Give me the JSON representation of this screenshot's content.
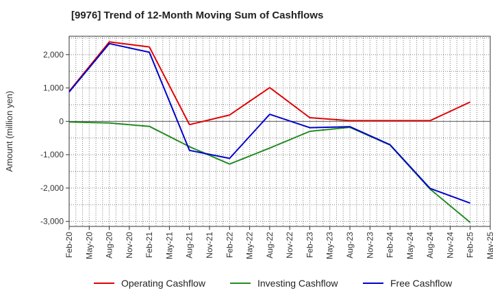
{
  "chart_data": {
    "type": "line",
    "title": "[9976]  Trend of 12-Month Moving Sum of Cashflows",
    "xlabel": "",
    "ylabel": "Amount (million yen)",
    "x": [
      "Feb-20",
      "May-20",
      "Aug-20",
      "Nov-20",
      "Feb-21",
      "May-21",
      "Aug-21",
      "Nov-21",
      "Feb-22",
      "May-22",
      "Aug-22",
      "Nov-22",
      "Feb-23",
      "May-23",
      "Aug-23",
      "Nov-23",
      "Feb-24",
      "May-24",
      "Aug-24",
      "Nov-24",
      "Feb-25",
      "May-25"
    ],
    "ylim": [
      -3150,
      2550
    ],
    "yticks": [
      2000,
      1000,
      0,
      -1000,
      -2000,
      -3000
    ],
    "ytick_labels": [
      "2,000",
      "1,000",
      "0",
      "-1,000",
      "-2,000",
      "-3,000"
    ],
    "grid": true,
    "legend": "bottom",
    "series": [
      {
        "name": "Operating Cashflow",
        "color": "#e00000",
        "points": [
          [
            "Feb-20",
            900
          ],
          [
            "Aug-20",
            2380
          ],
          [
            "Feb-21",
            2230
          ],
          [
            "Aug-21",
            -100
          ],
          [
            "Feb-22",
            190
          ],
          [
            "Aug-22",
            1010
          ],
          [
            "Feb-23",
            110
          ],
          [
            "Aug-23",
            20
          ],
          [
            "Aug-24",
            20
          ],
          [
            "Feb-25",
            580
          ]
        ]
      },
      {
        "name": "Investing Cashflow",
        "color": "#228b22",
        "points": [
          [
            "Feb-20",
            -20
          ],
          [
            "Aug-20",
            -50
          ],
          [
            "Feb-21",
            -150
          ],
          [
            "Aug-21",
            -760
          ],
          [
            "Feb-22",
            -1280
          ],
          [
            "Aug-22",
            -800
          ],
          [
            "Feb-23",
            -300
          ],
          [
            "Aug-23",
            -180
          ],
          [
            "Feb-24",
            -710
          ],
          [
            "Aug-24",
            -2030
          ],
          [
            "Feb-25",
            -3030
          ]
        ]
      },
      {
        "name": "Free Cashflow",
        "color": "#0000cc",
        "points": [
          [
            "Feb-20",
            880
          ],
          [
            "Aug-20",
            2330
          ],
          [
            "Feb-21",
            2070
          ],
          [
            "Aug-21",
            -870
          ],
          [
            "Feb-22",
            -1110
          ],
          [
            "Aug-22",
            210
          ],
          [
            "Feb-23",
            -190
          ],
          [
            "Aug-23",
            -160
          ],
          [
            "Feb-24",
            -700
          ],
          [
            "Aug-24",
            -2010
          ],
          [
            "Feb-25",
            -2450
          ]
        ]
      }
    ]
  }
}
